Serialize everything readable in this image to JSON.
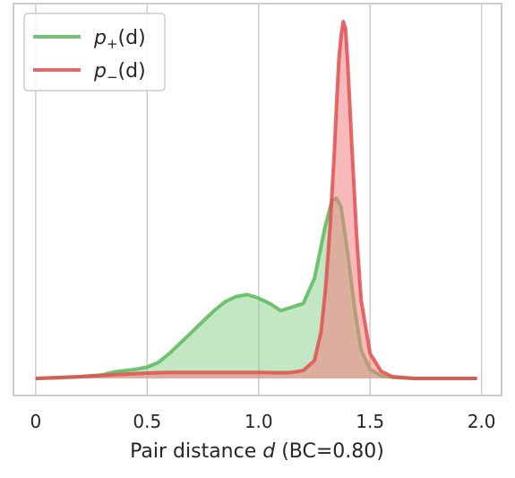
{
  "chart_data": {
    "type": "area",
    "title": "",
    "xlabel": {
      "prefix": "Pair distance ",
      "variable": "d",
      "suffix": " (BC=0.80)"
    },
    "ylabel": "",
    "xlim": [
      -0.1,
      2.09
    ],
    "xticks": [
      0,
      0.5,
      1.0,
      1.5,
      2.0
    ],
    "xtick_labels": [
      "0",
      "0.5",
      "1.0",
      "1.5",
      "2.0"
    ],
    "y_ticks_shown": false,
    "grid": "vertical",
    "legend_placement": "top-left",
    "series": [
      {
        "name_base": "p",
        "name_sub": "+",
        "name_arg": "(d)",
        "color": "#5cb85c",
        "fill": "#8fd48f",
        "x": [
          0.0,
          0.1,
          0.2,
          0.3,
          0.35,
          0.4,
          0.45,
          0.5,
          0.55,
          0.6,
          0.65,
          0.7,
          0.75,
          0.8,
          0.85,
          0.9,
          0.95,
          1.0,
          1.05,
          1.1,
          1.15,
          1.2,
          1.25,
          1.3,
          1.33,
          1.35,
          1.37,
          1.4,
          1.43,
          1.46,
          1.5,
          1.55,
          1.6,
          1.7,
          1.8,
          1.9,
          1.98
        ],
        "y": [
          0.0,
          0.002,
          0.005,
          0.01,
          0.018,
          0.022,
          0.026,
          0.032,
          0.045,
          0.07,
          0.1,
          0.13,
          0.16,
          0.19,
          0.215,
          0.23,
          0.235,
          0.225,
          0.21,
          0.19,
          0.2,
          0.21,
          0.28,
          0.43,
          0.5,
          0.505,
          0.48,
          0.35,
          0.2,
          0.08,
          0.025,
          0.008,
          0.003,
          0.0,
          0.0,
          0.0,
          0.0
        ]
      },
      {
        "name_base": "p",
        "name_sub": "−",
        "name_arg": "(d)",
        "color": "#e05050",
        "fill": "#f08080",
        "x": [
          0.0,
          0.2,
          0.4,
          0.5,
          0.6,
          0.8,
          1.0,
          1.1,
          1.15,
          1.2,
          1.25,
          1.28,
          1.3,
          1.32,
          1.34,
          1.35,
          1.36,
          1.37,
          1.38,
          1.39,
          1.4,
          1.42,
          1.44,
          1.46,
          1.5,
          1.55,
          1.6,
          1.7,
          1.8,
          1.98
        ],
        "y": [
          0.0,
          0.005,
          0.012,
          0.015,
          0.017,
          0.017,
          0.017,
          0.016,
          0.017,
          0.022,
          0.05,
          0.13,
          0.25,
          0.42,
          0.64,
          0.77,
          0.89,
          0.96,
          1.0,
          0.98,
          0.88,
          0.63,
          0.4,
          0.22,
          0.07,
          0.02,
          0.005,
          0.0,
          0.0,
          0.0
        ]
      }
    ]
  }
}
